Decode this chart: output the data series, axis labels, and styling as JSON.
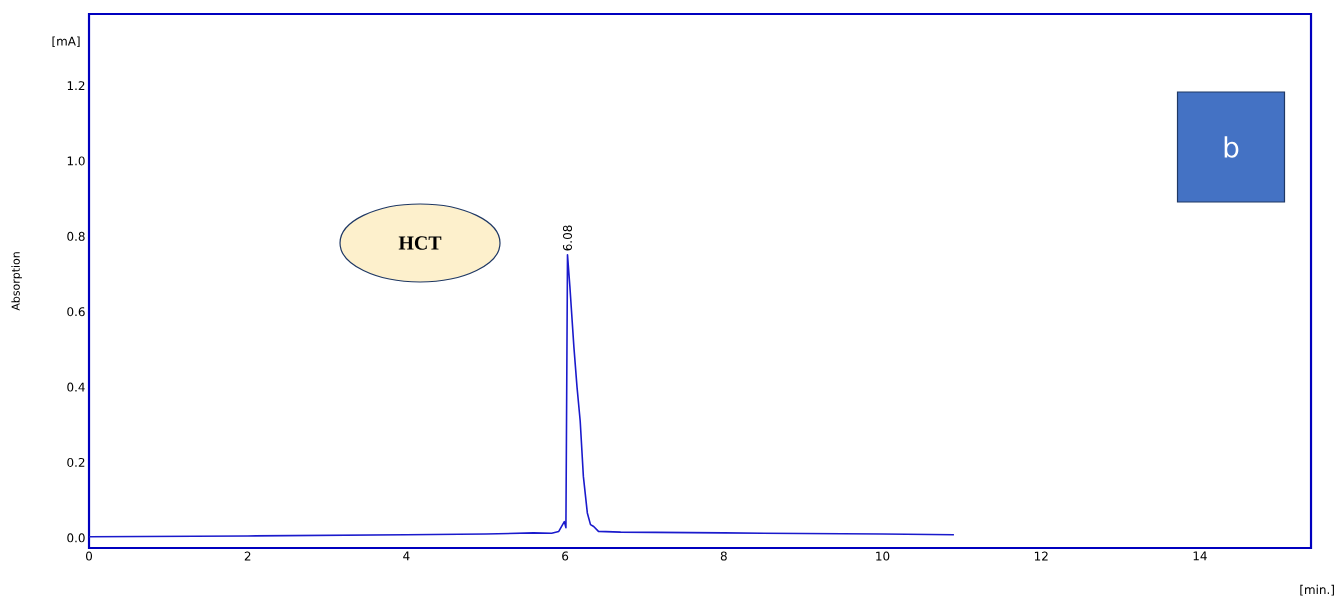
{
  "chart_data": {
    "type": "line",
    "ylabel": "Absorption",
    "annotations": [
      "HCT",
      "b",
      "[mA]",
      "[min.]",
      {
        "text": "6.08",
        "x": 6.03,
        "y": 0.751
      }
    ],
    "x": [
      0,
      2,
      4,
      5,
      5.6,
      5.83,
      5.92,
      5.99,
      6.01,
      6.03,
      6.06,
      6.11,
      6.15,
      6.19,
      6.23,
      6.28,
      6.32,
      6.36,
      6.42,
      6.7,
      8,
      10,
      10.9
    ],
    "series": [
      {
        "color": "#1a1acc",
        "values": [
          0.003,
          0.005,
          0.008,
          0.01,
          0.013,
          0.012,
          0.017,
          0.043,
          0.027,
          0.751,
          0.667,
          0.508,
          0.4,
          0.31,
          0.163,
          0.066,
          0.035,
          0.03,
          0.017,
          0.015,
          0.013,
          0.01,
          0.008
        ]
      }
    ],
    "xlim": [
      0,
      15.4
    ],
    "ylim": [
      -0.027,
      1.39
    ],
    "xticks": [
      0,
      2,
      4,
      6,
      8,
      10,
      12,
      14
    ],
    "yticks": [
      {
        "value": 0,
        "label": "0.0"
      },
      {
        "value": 0.2,
        "label": "0.2"
      },
      {
        "value": 0.4,
        "label": "0.4"
      },
      {
        "value": 0.6,
        "label": "0.6"
      },
      {
        "value": 0.8,
        "label": "0.8"
      },
      {
        "value": 1.0,
        "label": "1.0"
      },
      {
        "value": 1.2,
        "label": "1.2"
      }
    ],
    "grid": false,
    "marker": "none",
    "line_style": "solid"
  }
}
